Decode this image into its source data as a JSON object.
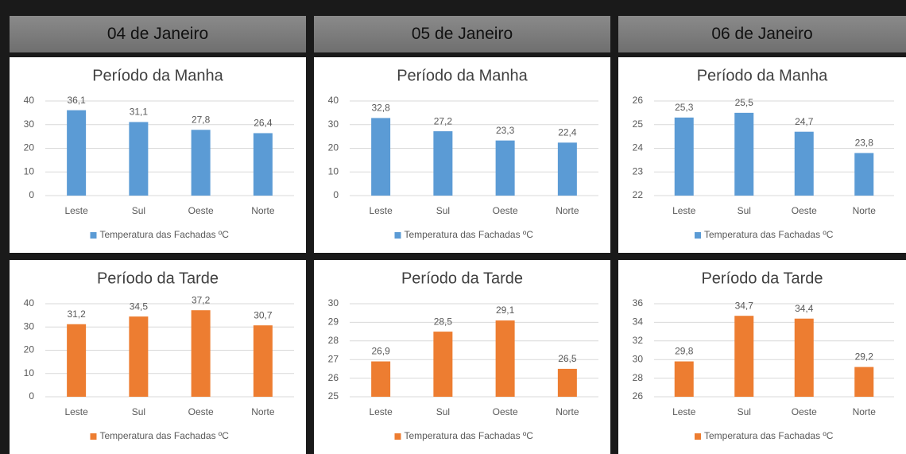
{
  "headers": [
    "04 de Janeiro",
    "05 de Janeiro",
    "06 de Janeiro"
  ],
  "chart_data": [
    {
      "type": "bar",
      "title": "Período da Manha",
      "categories": [
        "Leste",
        "Sul",
        "Oeste",
        "Norte"
      ],
      "series": [
        {
          "name": "Temperatura das Fachadas ºC",
          "color": "#5b9bd5",
          "values": [
            36.1,
            31.1,
            27.8,
            26.4
          ],
          "value_labels": [
            "36,1",
            "31,1",
            "27,8",
            "26,4"
          ]
        }
      ],
      "ylim": [
        0,
        40
      ],
      "yticks": [
        0,
        10,
        20,
        30,
        40
      ],
      "grid": true
    },
    {
      "type": "bar",
      "title": "Período da Manha",
      "categories": [
        "Leste",
        "Sul",
        "Oeste",
        "Norte"
      ],
      "series": [
        {
          "name": "Temperatura das Fachadas ºC",
          "color": "#5b9bd5",
          "values": [
            32.8,
            27.2,
            23.3,
            22.4
          ],
          "value_labels": [
            "32,8",
            "27,2",
            "23,3",
            "22,4"
          ]
        }
      ],
      "ylim": [
        0,
        40
      ],
      "yticks": [
        0,
        10,
        20,
        30,
        40
      ],
      "grid": true
    },
    {
      "type": "bar",
      "title": "Período da Manha",
      "categories": [
        "Leste",
        "Sul",
        "Oeste",
        "Norte"
      ],
      "series": [
        {
          "name": "Temperatura das Fachadas ºC",
          "color": "#5b9bd5",
          "values": [
            25.3,
            25.5,
            24.7,
            23.8
          ],
          "value_labels": [
            "25,3",
            "25,5",
            "24,7",
            "23,8"
          ]
        }
      ],
      "ylim": [
        22,
        26
      ],
      "yticks": [
        22,
        23,
        24,
        25,
        26
      ],
      "grid": true
    },
    {
      "type": "bar",
      "title": "Período da Tarde",
      "categories": [
        "Leste",
        "Sul",
        "Oeste",
        "Norte"
      ],
      "series": [
        {
          "name": "Temperatura das Fachadas ºC",
          "color": "#ed7d31",
          "values": [
            31.2,
            34.5,
            37.2,
            30.7
          ],
          "value_labels": [
            "31,2",
            "34,5",
            "37,2",
            "30,7"
          ]
        }
      ],
      "ylim": [
        0,
        40
      ],
      "yticks": [
        0,
        10,
        20,
        30,
        40
      ],
      "grid": true
    },
    {
      "type": "bar",
      "title": "Período da Tarde",
      "categories": [
        "Leste",
        "Sul",
        "Oeste",
        "Norte"
      ],
      "series": [
        {
          "name": "Temperatura das Fachadas ºC",
          "color": "#ed7d31",
          "values": [
            26.9,
            28.5,
            29.1,
            26.5
          ],
          "value_labels": [
            "26,9",
            "28,5",
            "29,1",
            "26,5"
          ]
        }
      ],
      "ylim": [
        25,
        30
      ],
      "yticks": [
        25,
        26,
        27,
        28,
        29,
        30
      ],
      "grid": true
    },
    {
      "type": "bar",
      "title": "Período da Tarde",
      "categories": [
        "Leste",
        "Sul",
        "Oeste",
        "Norte"
      ],
      "series": [
        {
          "name": "Temperatura das Fachadas ºC",
          "color": "#ed7d31",
          "values": [
            29.8,
            34.7,
            34.4,
            29.2
          ],
          "value_labels": [
            "29,8",
            "34,7",
            "34,4",
            "29,2"
          ]
        }
      ],
      "ylim": [
        26,
        36
      ],
      "yticks": [
        26,
        28,
        30,
        32,
        34,
        36
      ],
      "grid": true
    }
  ]
}
